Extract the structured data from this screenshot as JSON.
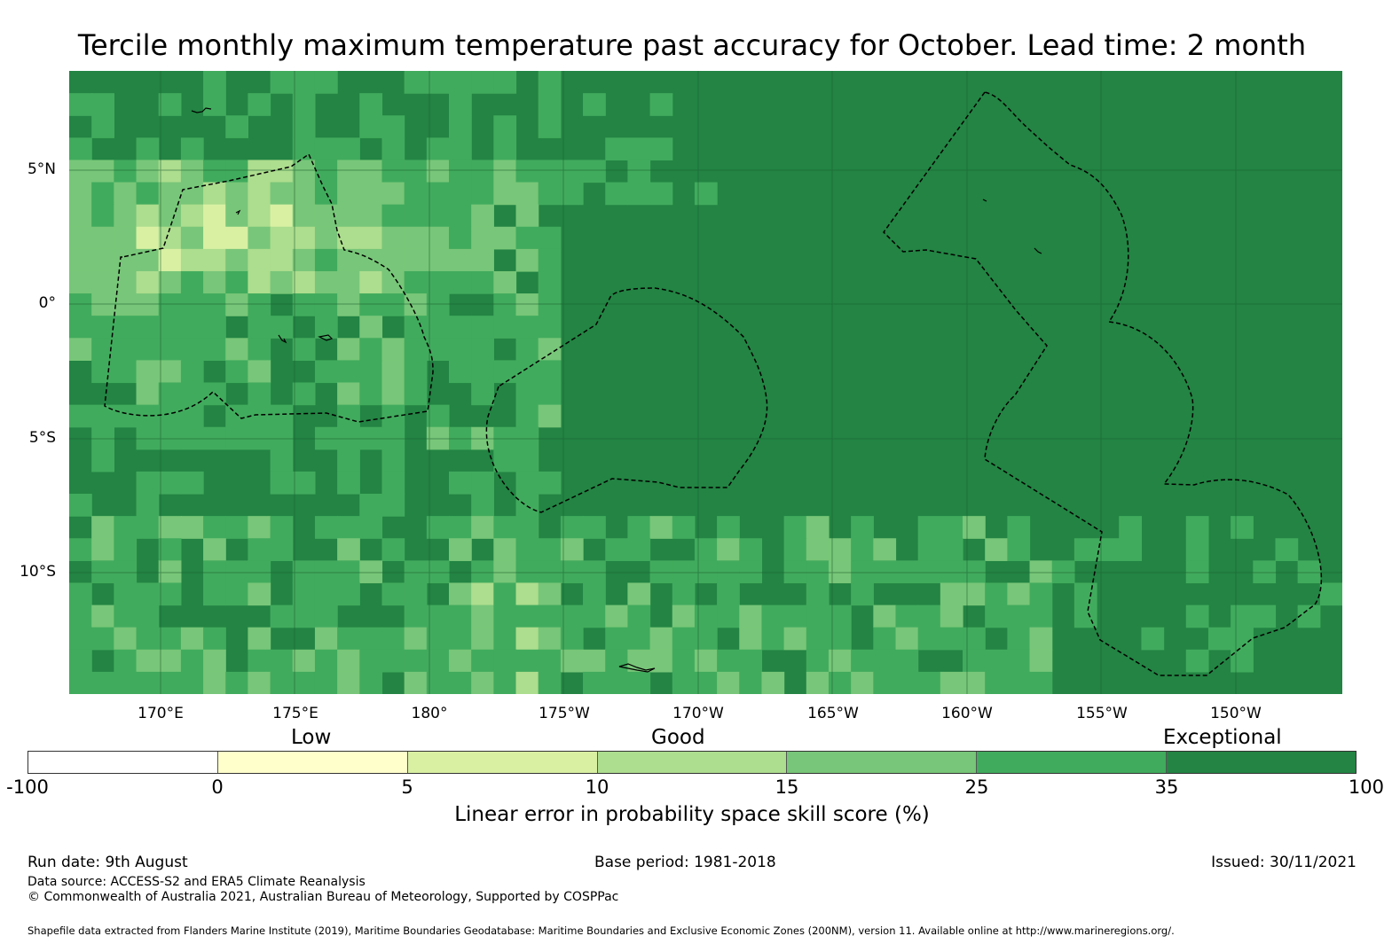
{
  "title": "Tercile monthly maximum temperature past accuracy for October. Lead time: 2 month",
  "map": {
    "lat_labels": [
      "5°N",
      "0°",
      "5°S",
      "10°S"
    ],
    "lon_labels": [
      "170°E",
      "175°E",
      "180°",
      "175°W",
      "170°W",
      "165°W",
      "160°W",
      "155°W",
      "150°W"
    ],
    "category_labels": [
      "Low",
      "Good",
      "Exceptional"
    ],
    "palette": {
      "-100..0": "#ffffff",
      "0..5": "#ffffcc",
      "5..10": "#d9f0a3",
      "10..15": "#addd8e",
      "15..25": "#78c679",
      "25..35": "#41ab5d",
      "35..100": "#238443"
    }
  },
  "colorbar": {
    "ticks": [
      "-100",
      "0",
      "5",
      "10",
      "15",
      "25",
      "35",
      "100"
    ],
    "colors": [
      "#ffffff",
      "#ffffcc",
      "#d9f0a3",
      "#addd8e",
      "#78c679",
      "#41ab5d",
      "#238443"
    ],
    "label": "Linear error in probability space skill score (%)"
  },
  "footer": {
    "run_date": "Run date: 9th August",
    "base_period": "Base period: 1981-2018",
    "issued": "Issued: 30/11/2021",
    "data_source": "Data source: ACCESS-S2 and ERA5 Climate Reanalysis",
    "copyright": "© Commonwealth of Australia 2021, Australian Bureau of Meteorology, Supported by COSPPac",
    "shapefile": "Shapefile data extracted from Flanders Marine Institute (2019), Maritime Boundaries Geodatabase: Maritime Boundaries and Exclusive Economic Zones (200NM), version 11. Available online at http://www.marineregions.org/."
  }
}
